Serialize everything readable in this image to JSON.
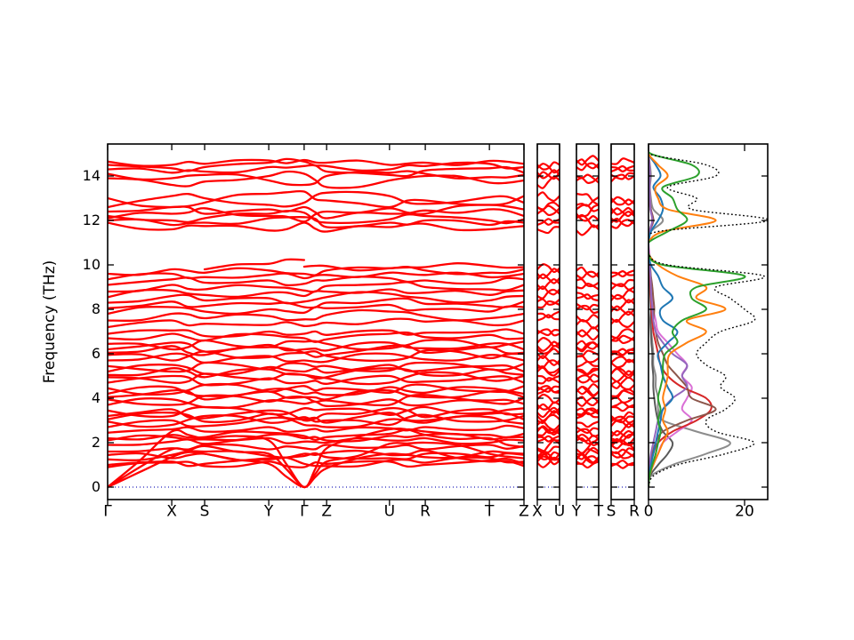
{
  "chart_data": {
    "type": "line",
    "title": "",
    "ylabel": "Frequency (THz)",
    "ylim": [
      -0.56,
      15.44
    ],
    "yticks": [
      "0",
      "2",
      "4",
      "6",
      "8",
      "10",
      "12",
      "14"
    ],
    "ytick_values": [
      0,
      2,
      4,
      6,
      8,
      10,
      12,
      14
    ],
    "band_color": "#ff0000",
    "zero_line": {
      "value": 0,
      "color": "#2222bb",
      "style": "dotted"
    },
    "panels": [
      {
        "id": "main",
        "klabels": [
          "Γ",
          "X",
          "S",
          "Y",
          "Γ",
          "Z",
          "U",
          "R",
          "T",
          "Z"
        ],
        "kfracs": [
          0,
          0.154,
          0.233,
          0.387,
          0.472,
          0.526,
          0.677,
          0.763,
          0.917,
          1.0
        ],
        "node_indices": [
          0,
          1,
          2,
          3,
          4,
          5,
          6,
          7,
          8,
          9
        ]
      },
      {
        "id": "XU",
        "klabels": [
          "X",
          "U"
        ],
        "node_indices": [
          1,
          6
        ]
      },
      {
        "id": "YT",
        "klabels": [
          "Y",
          "T"
        ],
        "node_indices": [
          3,
          8
        ]
      },
      {
        "id": "SR",
        "klabels": [
          "S",
          "R"
        ],
        "node_indices": [
          2,
          7
        ]
      }
    ],
    "dos_panel": {
      "xticks": [
        "0",
        "20"
      ],
      "xtick_values": [
        0,
        20
      ],
      "xlim": [
        0,
        24.8
      ],
      "legend": "none",
      "grid": false
    },
    "bands": [
      [
        0,
        1.35,
        1.5,
        1.05,
        0,
        0.85,
        1.5,
        1.65,
        1.15,
        0.95
      ],
      [
        0,
        1.7,
        1.85,
        1.5,
        0,
        1.15,
        1.95,
        2.0,
        1.5,
        1.3
      ],
      [
        0,
        2.5,
        2.2,
        2.1,
        0,
        1.75,
        2.6,
        2.35,
        2.2,
        1.8
      ],
      [
        0.9,
        1.1,
        0.95,
        1.15,
        0.9,
        1.05,
        1.15,
        1.0,
        1.2,
        1.05
      ],
      [
        1.0,
        1.15,
        1.05,
        1.3,
        1.05,
        0.95,
        1.2,
        1.1,
        1.3,
        1.15
      ],
      [
        1.25,
        1.45,
        1.6,
        1.4,
        1.5,
        1.55,
        1.45,
        1.35,
        1.6,
        1.5
      ],
      [
        1.45,
        1.3,
        1.5,
        1.25,
        1.4,
        1.35,
        1.3,
        1.5,
        1.35,
        1.45
      ],
      [
        1.6,
        1.75,
        1.9,
        1.7,
        1.75,
        1.9,
        1.8,
        1.7,
        1.9,
        1.85
      ],
      [
        1.9,
        2.05,
        1.95,
        2.2,
        2.05,
        2.0,
        2.1,
        2.2,
        2.0,
        2.1
      ],
      [
        2.1,
        2.25,
        2.15,
        2.35,
        2.2,
        2.1,
        2.3,
        2.35,
        2.15,
        2.25
      ],
      [
        2.2,
        2.35,
        2.25,
        2.45,
        2.3,
        2.25,
        2.4,
        2.5,
        2.35,
        2.4
      ],
      [
        2.45,
        2.6,
        2.5,
        2.7,
        2.55,
        2.5,
        2.65,
        2.7,
        2.6,
        2.65
      ],
      [
        2.7,
        3.0,
        2.75,
        3.1,
        2.8,
        2.7,
        3.05,
        2.9,
        3.15,
        2.85
      ],
      [
        2.95,
        2.8,
        3.2,
        2.9,
        3.15,
        3.0,
        2.8,
        3.25,
        2.95,
        3.2
      ],
      [
        3.05,
        3.35,
        2.95,
        3.3,
        3.05,
        2.9,
        3.35,
        3.0,
        3.3,
        3.05
      ],
      [
        3.2,
        3.5,
        3.1,
        3.45,
        3.0,
        3.3,
        3.55,
        3.15,
        3.5,
        3.3
      ],
      [
        3.45,
        3.2,
        3.6,
        3.3,
        3.55,
        3.5,
        3.25,
        3.6,
        3.35,
        3.55
      ],
      [
        3.7,
        3.95,
        3.6,
        3.9,
        3.75,
        3.65,
        3.95,
        3.7,
        3.9,
        3.75
      ],
      [
        3.95,
        3.7,
        4.1,
        3.85,
        4.05,
        3.9,
        3.7,
        4.15,
        3.8,
        4.0
      ],
      [
        4.05,
        4.35,
        3.95,
        4.3,
        4.05,
        3.95,
        4.35,
        4.05,
        4.3,
        4.05
      ],
      [
        4.2,
        4.5,
        4.1,
        4.4,
        4.2,
        4.15,
        4.5,
        4.25,
        4.45,
        4.2
      ],
      [
        4.45,
        4.2,
        4.6,
        4.3,
        4.55,
        4.45,
        4.25,
        4.6,
        4.3,
        4.55
      ],
      [
        4.7,
        5.0,
        4.6,
        4.9,
        4.7,
        4.65,
        5.0,
        4.75,
        4.95,
        4.7
      ],
      [
        4.95,
        4.7,
        5.1,
        4.85,
        5.05,
        4.9,
        4.7,
        5.15,
        4.8,
        5.0
      ],
      [
        5.05,
        5.35,
        4.95,
        5.3,
        5.05,
        4.95,
        5.35,
        5.05,
        5.3,
        5.05
      ],
      [
        5.2,
        5.5,
        5.1,
        5.4,
        5.2,
        5.15,
        5.5,
        5.25,
        5.45,
        5.2
      ],
      [
        5.45,
        5.2,
        5.6,
        5.3,
        5.55,
        5.45,
        5.25,
        5.6,
        5.3,
        5.55
      ],
      [
        5.7,
        6.0,
        5.6,
        5.9,
        5.7,
        5.65,
        6.0,
        5.75,
        5.95,
        5.7
      ],
      [
        5.95,
        5.7,
        6.1,
        5.85,
        6.05,
        5.9,
        5.7,
        6.15,
        5.8,
        6.0
      ],
      [
        6.05,
        6.35,
        5.95,
        6.3,
        6.05,
        5.95,
        6.35,
        6.05,
        6.3,
        6.05
      ],
      [
        6.2,
        6.5,
        6.1,
        6.4,
        6.2,
        6.15,
        6.5,
        6.25,
        6.45,
        6.2
      ],
      [
        6.45,
        6.2,
        6.6,
        6.3,
        6.55,
        6.45,
        6.25,
        6.6,
        6.3,
        6.55
      ],
      [
        6.7,
        6.9,
        6.6,
        6.85,
        6.7,
        6.65,
        6.9,
        6.75,
        6.85,
        6.7
      ],
      [
        6.9,
        7.05,
        6.8,
        7.0,
        6.9,
        6.85,
        7.05,
        6.95,
        7.0,
        6.9
      ],
      [
        7.2,
        7.5,
        7.35,
        7.3,
        7.25,
        7.4,
        7.55,
        7.45,
        7.3,
        7.5
      ],
      [
        7.5,
        7.8,
        7.6,
        7.7,
        7.55,
        7.75,
        7.9,
        7.7,
        7.6,
        7.8
      ],
      [
        7.8,
        8.1,
        7.9,
        8.0,
        7.85,
        8.05,
        8.2,
        8.0,
        7.9,
        8.1
      ],
      [
        8.05,
        8.35,
        8.15,
        8.25,
        8.1,
        8.3,
        8.45,
        8.25,
        8.15,
        8.35
      ],
      [
        8.3,
        8.6,
        8.4,
        8.5,
        8.35,
        8.55,
        8.7,
        8.5,
        8.4,
        8.6
      ],
      [
        8.55,
        8.85,
        8.65,
        8.75,
        8.6,
        8.8,
        8.9,
        8.75,
        8.65,
        8.85
      ],
      [
        8.8,
        9.1,
        8.9,
        9.0,
        8.85,
        9.05,
        9.15,
        9.0,
        8.9,
        9.1
      ],
      [
        9.1,
        9.35,
        9.2,
        9.3,
        9.15,
        9.3,
        9.4,
        9.3,
        9.2,
        9.35
      ],
      [
        9.35,
        9.6,
        9.45,
        9.55,
        9.4,
        9.55,
        9.65,
        9.55,
        9.45,
        9.6
      ],
      [
        9.6,
        9.8,
        9.65,
        9.75,
        9.6,
        9.75,
        9.85,
        9.75,
        9.65,
        9.8
      ],
      [
        null,
        null,
        9.8,
        10.05,
        10.22,
        null,
        null,
        null,
        null,
        null
      ],
      [
        null,
        null,
        null,
        null,
        9.92,
        9.95,
        9.85,
        9.9,
        9.95,
        9.9
      ],
      [
        11.9,
        11.6,
        11.75,
        11.55,
        11.9,
        11.5,
        11.7,
        11.85,
        11.6,
        11.75
      ],
      [
        12.0,
        11.8,
        11.9,
        12.1,
        12.15,
        11.7,
        11.9,
        12.0,
        11.8,
        11.9
      ],
      [
        12.2,
        12.0,
        12.1,
        12.3,
        12.35,
        11.9,
        12.05,
        12.2,
        12.0,
        12.05
      ],
      [
        12.4,
        12.6,
        12.3,
        12.5,
        12.6,
        12.1,
        12.3,
        12.45,
        12.5,
        12.2
      ],
      [
        12.1,
        12.3,
        12.55,
        12.2,
        11.95,
        12.4,
        12.55,
        12.3,
        12.7,
        12.5
      ],
      [
        13.0,
        12.6,
        12.8,
        13.2,
        13.3,
        12.9,
        12.6,
        12.9,
        12.7,
        13.1
      ],
      [
        12.6,
        13.1,
        13.0,
        12.7,
        12.8,
        13.25,
        13.1,
        12.75,
        13.05,
        12.8
      ],
      [
        13.9,
        13.6,
        13.75,
        14.0,
        14.1,
        13.5,
        13.8,
        14.0,
        13.7,
        13.8
      ],
      [
        14.1,
        13.9,
        14.05,
        13.8,
        13.6,
        14.0,
        14.15,
        14.1,
        13.95,
        14.05
      ],
      [
        14.3,
        14.15,
        14.2,
        14.4,
        14.45,
        14.2,
        14.05,
        14.25,
        14.35,
        14.15
      ],
      [
        14.5,
        14.35,
        14.4,
        14.6,
        14.65,
        14.45,
        14.3,
        14.45,
        14.55,
        14.4
      ],
      [
        14.65,
        14.5,
        14.55,
        14.7,
        14.72,
        14.6,
        14.5,
        14.6,
        14.68,
        14.55
      ]
    ],
    "dos": {
      "freqs": [
        0,
        0.5,
        1,
        1.5,
        2,
        2.5,
        3,
        3.5,
        4,
        4.5,
        5,
        5.5,
        6,
        6.5,
        7,
        7.5,
        8,
        8.5,
        9,
        9.5,
        10,
        10.5,
        11,
        11.5,
        12,
        12.5,
        13,
        13.5,
        14,
        14.5,
        15,
        15.5
      ],
      "series": [
        {
          "name": "pdos-gray",
          "color": "#8c8c8c",
          "style": "solid",
          "values": [
            0,
            0.5,
            5,
            12,
            17,
            10,
            3,
            2,
            2,
            1.5,
            1.5,
            1,
            1,
            0.8,
            0.6,
            0.5,
            0.8,
            0.5,
            0.4,
            0.3,
            0.2,
            0,
            0,
            0.5,
            3,
            1,
            0.5,
            0.3,
            0.5,
            0.3,
            0,
            0
          ]
        },
        {
          "name": "pdos-dimgray",
          "color": "#5a5a5a",
          "style": "solid",
          "values": [
            0,
            0.3,
            2,
            4,
            5,
            3,
            2,
            1.5,
            1.2,
            1,
            1,
            0.8,
            0.8,
            0.6,
            0.5,
            0.4,
            0.5,
            0.4,
            0.3,
            0.2,
            0.1,
            0,
            0,
            0.2,
            1,
            0.4,
            0.2,
            0.1,
            0.2,
            0.1,
            0,
            0
          ]
        },
        {
          "name": "pdos-pink",
          "color": "#da70d6",
          "style": "solid",
          "values": [
            0,
            0.2,
            1,
            2,
            3,
            6,
            9,
            7,
            8,
            9,
            7,
            8,
            6,
            4,
            2,
            1.5,
            1,
            0.8,
            0.5,
            0.4,
            0.3,
            0.2,
            0,
            0.3,
            1,
            0.5,
            0.3,
            0.2,
            0.3,
            0.2,
            0,
            0
          ]
        },
        {
          "name": "pdos-red",
          "color": "#d62728",
          "style": "solid",
          "values": [
            0,
            0,
            0.3,
            1,
            2,
            5,
            10,
            13,
            12,
            7,
            4,
            2.5,
            2,
            1.5,
            1,
            0.8,
            0.6,
            0.5,
            0.4,
            0.3,
            0.2,
            0,
            0,
            0.2,
            0.8,
            0.4,
            0.2,
            0.1,
            0.2,
            0.1,
            0,
            0
          ]
        },
        {
          "name": "pdos-brown",
          "color": "#8c564b",
          "style": "solid",
          "values": [
            0,
            0,
            0.2,
            0.8,
            1.5,
            3,
            8,
            14,
            9,
            8,
            6,
            4,
            3,
            2,
            1.5,
            1,
            1.2,
            1,
            0.8,
            0.5,
            0.3,
            0,
            0,
            0.2,
            1,
            0.5,
            0.3,
            0.2,
            0.3,
            0.2,
            0,
            0
          ]
        },
        {
          "name": "pdos-purple",
          "color": "#9467bd",
          "style": "solid",
          "values": [
            0,
            0,
            0.2,
            0.5,
            1,
            1.5,
            2,
            3,
            5,
            8,
            7,
            8,
            5,
            3,
            1.5,
            1,
            0.8,
            0.6,
            0.5,
            0.4,
            0.2,
            0,
            0,
            0.2,
            0.8,
            0.4,
            0.3,
            0.2,
            0.3,
            0.2,
            0,
            0
          ]
        },
        {
          "name": "pdos-blue",
          "color": "#1f77b4",
          "style": "solid",
          "values": [
            0,
            0.1,
            0.5,
            1,
            1.5,
            2,
            2.5,
            3,
            5,
            4,
            3,
            2.5,
            2,
            4,
            6,
            3,
            2.5,
            5,
            3,
            2,
            0.5,
            0,
            0,
            0.5,
            2,
            3,
            2.5,
            1,
            2.5,
            1.5,
            0,
            0
          ]
        },
        {
          "name": "pdos-orange",
          "color": "#ff7f0e",
          "style": "solid",
          "values": [
            0,
            0.2,
            1,
            2,
            3,
            4,
            3,
            3.5,
            3,
            3.5,
            4,
            4,
            4.5,
            8,
            12,
            8,
            16,
            10,
            12,
            6,
            2,
            0,
            0,
            3,
            14,
            4,
            2,
            1.5,
            4,
            2,
            0,
            0
          ]
        },
        {
          "name": "pdos-green",
          "color": "#2ca02c",
          "style": "solid",
          "values": [
            0,
            0.2,
            0.8,
            1.5,
            2,
            2.5,
            2,
            2.5,
            2,
            2.5,
            3,
            3,
            3.5,
            6,
            5,
            7,
            12,
            9,
            10,
            20,
            3,
            0,
            0,
            4,
            8,
            6,
            5,
            3,
            10,
            9,
            0.5,
            0
          ]
        },
        {
          "name": "total-dos",
          "color": "#000000",
          "style": "dotted",
          "values": [
            0,
            1,
            6,
            16,
            22,
            14,
            12,
            16,
            18,
            15,
            16,
            12,
            10,
            12,
            15,
            22,
            20,
            17,
            14,
            24,
            4,
            0,
            0,
            2,
            25,
            9,
            10,
            4,
            14,
            12,
            0,
            0
          ]
        }
      ]
    }
  }
}
